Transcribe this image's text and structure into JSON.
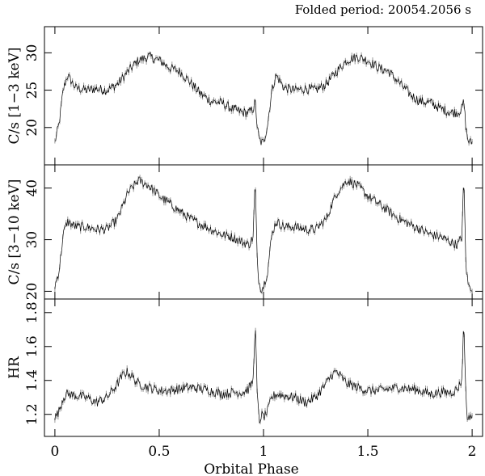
{
  "chart_data": {
    "type": "line",
    "title": "Folded period: 20054.2056 s",
    "xlabel": "Orbital Phase",
    "xlim": [
      -0.05,
      2.05
    ],
    "x_ticks": [
      0,
      0.5,
      1,
      1.5,
      2
    ],
    "x_tick_labels": [
      "0",
      "0.5",
      "1",
      "1.5",
      "2"
    ],
    "grid": false,
    "panels": [
      {
        "ylabel": "C/s [1−3 keV]",
        "ylim": [
          15,
          33.5
        ],
        "y_ticks": [
          20,
          25,
          30
        ],
        "y_tick_labels": [
          "20",
          "25",
          "30"
        ],
        "phase": [
          0.0,
          0.02,
          0.04,
          0.06,
          0.1,
          0.15,
          0.2,
          0.25,
          0.3,
          0.35,
          0.4,
          0.45,
          0.5,
          0.55,
          0.6,
          0.65,
          0.7,
          0.75,
          0.8,
          0.85,
          0.9,
          0.93,
          0.95,
          0.96,
          0.97,
          0.98,
          0.99
        ],
        "values": [
          18.0,
          20.5,
          25.0,
          27.0,
          25.3,
          25.0,
          25.2,
          25.0,
          25.8,
          27.5,
          29.0,
          29.5,
          29.0,
          28.0,
          27.5,
          26.0,
          24.5,
          23.5,
          23.3,
          22.5,
          22.0,
          22.0,
          22.5,
          23.5,
          20.0,
          18.3,
          18.0
        ]
      },
      {
        "ylabel": "C/s [3−10 keV]",
        "ylim": [
          18.5,
          44.5
        ],
        "y_ticks": [
          20,
          30,
          40
        ],
        "y_tick_labels": [
          "20",
          "30",
          "40"
        ],
        "phase": [
          0.0,
          0.02,
          0.04,
          0.06,
          0.1,
          0.15,
          0.2,
          0.25,
          0.3,
          0.35,
          0.4,
          0.45,
          0.5,
          0.55,
          0.6,
          0.65,
          0.7,
          0.75,
          0.8,
          0.85,
          0.9,
          0.93,
          0.95,
          0.96,
          0.97,
          0.98,
          0.99
        ],
        "values": [
          21.0,
          24.0,
          31.0,
          33.5,
          32.5,
          32.5,
          32.0,
          32.0,
          34.0,
          39.0,
          41.5,
          40.5,
          38.5,
          37.0,
          35.5,
          34.0,
          33.0,
          32.0,
          31.0,
          30.5,
          29.5,
          29.0,
          30.5,
          42.0,
          25.0,
          21.5,
          20.5
        ]
      },
      {
        "ylabel": "HR",
        "ylim": [
          1.07,
          1.88
        ],
        "y_ticks": [
          1.2,
          1.4,
          1.6,
          1.8
        ],
        "y_tick_labels": [
          "1.2",
          "1.4",
          "1.6",
          "1.8"
        ],
        "phase": [
          0.0,
          0.02,
          0.04,
          0.06,
          0.1,
          0.15,
          0.2,
          0.25,
          0.3,
          0.33,
          0.35,
          0.4,
          0.45,
          0.5,
          0.55,
          0.6,
          0.65,
          0.7,
          0.75,
          0.8,
          0.85,
          0.9,
          0.93,
          0.95,
          0.96,
          0.97,
          0.98,
          0.99
        ],
        "values": [
          1.18,
          1.22,
          1.3,
          1.32,
          1.31,
          1.3,
          1.27,
          1.3,
          1.38,
          1.44,
          1.45,
          1.38,
          1.36,
          1.34,
          1.34,
          1.35,
          1.36,
          1.35,
          1.34,
          1.32,
          1.33,
          1.33,
          1.35,
          1.4,
          1.75,
          1.3,
          1.15,
          1.2
        ]
      }
    ]
  }
}
